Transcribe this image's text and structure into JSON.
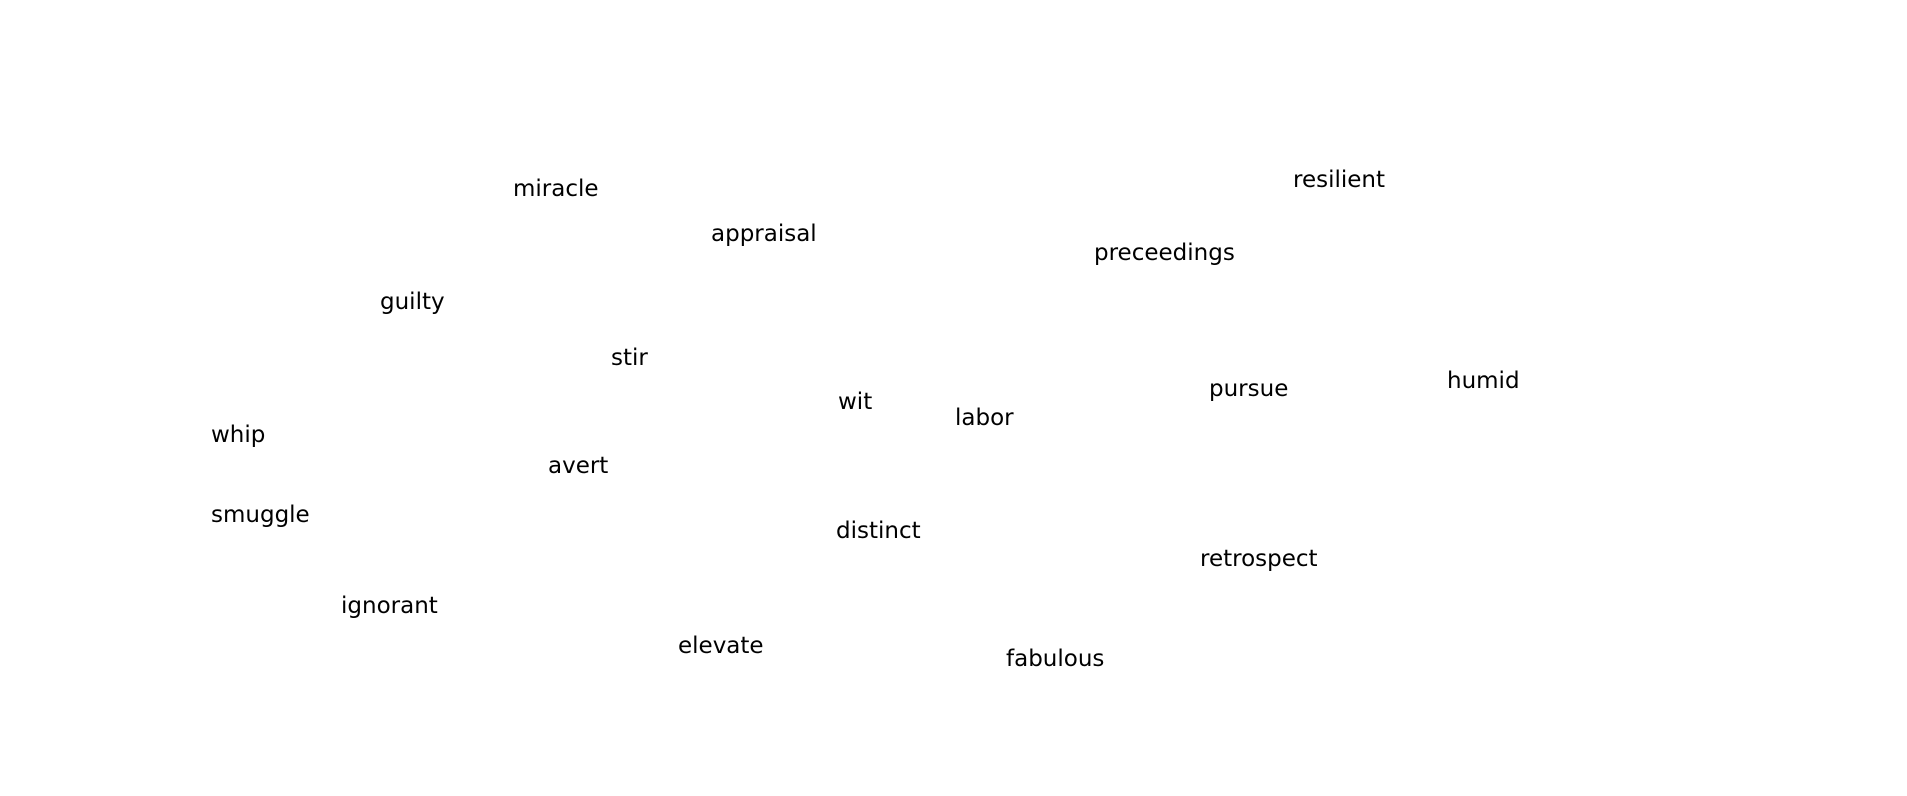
{
  "words": [
    "miracle",
    "resilient",
    "appraisal",
    "preceedings",
    "guilty",
    "stir",
    "wit",
    "labor",
    "pursue",
    "humid",
    "whip",
    "avert",
    "smuggle",
    "distinct",
    "retrospect",
    "ignorant",
    "elevate",
    "fabulous"
  ],
  "colors": {
    "background": "#ffffff",
    "text": "#000000"
  }
}
